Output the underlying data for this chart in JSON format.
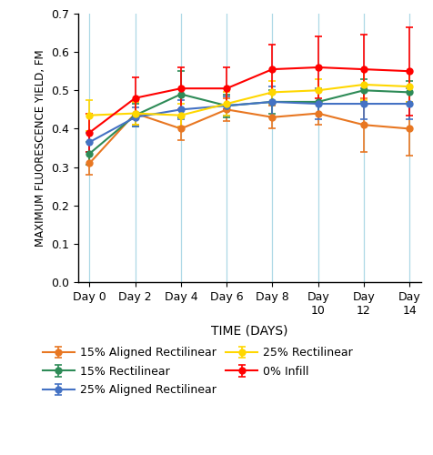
{
  "days": [
    0,
    2,
    4,
    6,
    8,
    10,
    12,
    14
  ],
  "day_labels": [
    "Day 0",
    "Day 2",
    "Day 4",
    "Day 6",
    "Day 8",
    "Day\n10",
    "Day\n12",
    "Day\n14"
  ],
  "series": {
    "15% Aligned Rectilinear": {
      "values": [
        0.31,
        0.44,
        0.4,
        0.45,
        0.43,
        0.44,
        0.41,
        0.4
      ],
      "errors": [
        0.03,
        0.03,
        0.03,
        0.03,
        0.03,
        0.03,
        0.07,
        0.07
      ],
      "color": "#E87722",
      "marker": "o"
    },
    "15% Rectilinear": {
      "values": [
        0.335,
        0.435,
        0.49,
        0.46,
        0.47,
        0.47,
        0.5,
        0.495
      ],
      "errors": [
        0.03,
        0.03,
        0.06,
        0.03,
        0.03,
        0.03,
        0.03,
        0.03
      ],
      "color": "#2E8B57",
      "marker": "o"
    },
    "25% Aligned Rectilinear": {
      "values": [
        0.365,
        0.43,
        0.45,
        0.46,
        0.47,
        0.465,
        0.465,
        0.465
      ],
      "errors": [
        0.025,
        0.025,
        0.025,
        0.025,
        0.04,
        0.04,
        0.04,
        0.04
      ],
      "color": "#4472C4",
      "marker": "o"
    },
    "25% Rectilinear": {
      "values": [
        0.435,
        0.44,
        0.435,
        0.465,
        0.495,
        0.5,
        0.515,
        0.51
      ],
      "errors": [
        0.04,
        0.03,
        0.03,
        0.03,
        0.03,
        0.03,
        0.04,
        0.04
      ],
      "color": "#FFD700",
      "marker": "o"
    },
    "0% Infill": {
      "values": [
        0.39,
        0.48,
        0.505,
        0.505,
        0.555,
        0.56,
        0.555,
        0.55
      ],
      "errors": [
        0.05,
        0.055,
        0.055,
        0.055,
        0.065,
        0.08,
        0.09,
        0.115
      ],
      "color": "#FF0000",
      "marker": "o"
    }
  },
  "ylabel": "MAXIMUM FLUORESCENCE YIELD, FM",
  "xlabel": "TIME (DAYS)",
  "ylim": [
    0.0,
    0.7
  ],
  "yticks": [
    0.0,
    0.1,
    0.2,
    0.3,
    0.4,
    0.5,
    0.6,
    0.7
  ],
  "grid_color": "#ADD8E6",
  "background_color": "#FFFFFF",
  "series_order": [
    "15% Aligned Rectilinear",
    "15% Rectilinear",
    "25% Aligned Rectilinear",
    "25% Rectilinear",
    "0% Infill"
  ],
  "legend_col1": [
    "15% Aligned Rectilinear",
    "25% Aligned Rectilinear",
    "0% Infill"
  ],
  "legend_col2": [
    "15% Rectilinear",
    "25% Rectilinear"
  ]
}
